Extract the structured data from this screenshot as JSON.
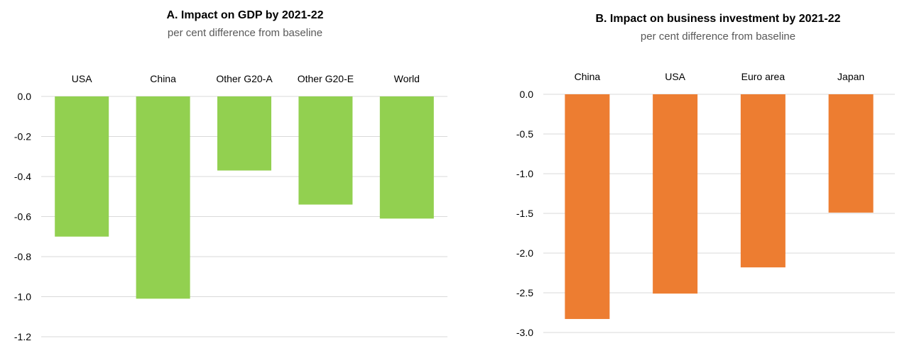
{
  "chart_data": [
    {
      "type": "bar",
      "title": "A. Impact on GDP by 2021-22",
      "subtitle": "per cent difference from baseline",
      "categories": [
        "USA",
        "China",
        "Other G20-A",
        "Other G20-E",
        "World"
      ],
      "values": [
        -0.7,
        -1.01,
        -0.37,
        -0.54,
        -0.61
      ],
      "ylim": [
        -1.2,
        0.0
      ],
      "yticks": [
        0.0,
        -0.2,
        -0.4,
        -0.6,
        -0.8,
        -1.0,
        -1.2
      ],
      "ytick_labels": [
        "0.0",
        "-0.2",
        "-0.4",
        "-0.6",
        "-0.8",
        "-1.0",
        "-1.2"
      ],
      "color": "#92d050",
      "grid": true,
      "category_labels_position": "top"
    },
    {
      "type": "bar",
      "title": "B. Impact on business investment by 2021-22",
      "subtitle": "per cent difference from baseline",
      "categories": [
        "China",
        "USA",
        "Euro area",
        "Japan"
      ],
      "values": [
        -2.83,
        -2.51,
        -2.18,
        -1.49
      ],
      "ylim": [
        -3.0,
        0.0
      ],
      "yticks": [
        0.0,
        -0.5,
        -1.0,
        -1.5,
        -2.0,
        -2.5,
        -3.0
      ],
      "ytick_labels": [
        "0.0",
        "-0.5",
        "-1.0",
        "-1.5",
        "-2.0",
        "-2.5",
        "-3.0"
      ],
      "color": "#ed7d31",
      "grid": true,
      "category_labels_position": "top"
    }
  ]
}
